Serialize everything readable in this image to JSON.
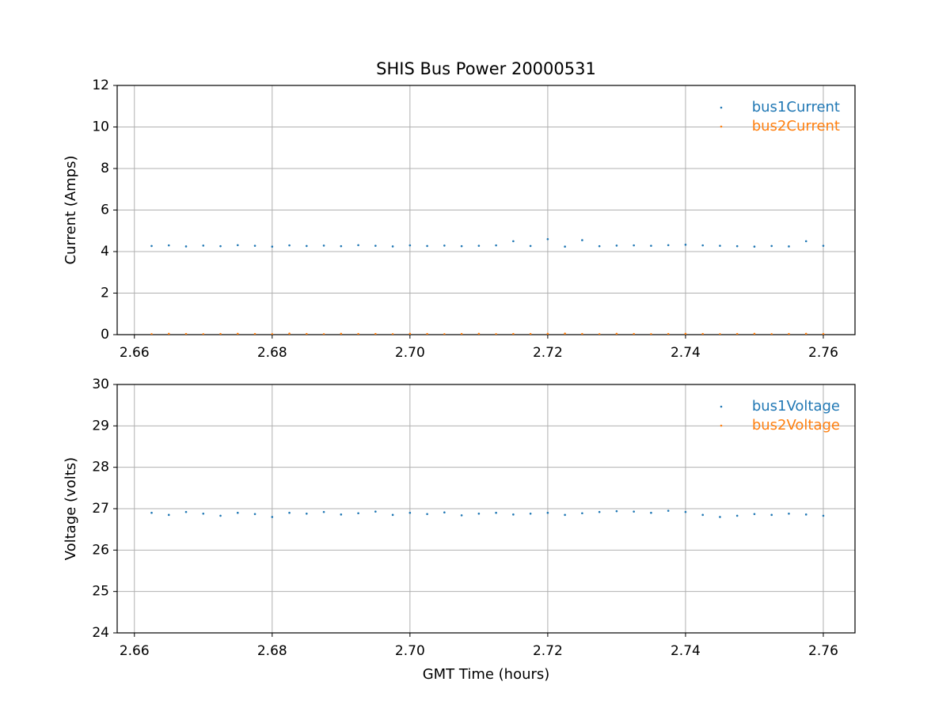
{
  "chart_data": [
    {
      "type": "scatter",
      "title": "SHIS Bus Power 20000531",
      "ylabel": "Current (Amps)",
      "x": [
        2.6625,
        2.665,
        2.6675,
        2.67,
        2.6725,
        2.675,
        2.6775,
        2.68,
        2.6825,
        2.685,
        2.6875,
        2.69,
        2.6925,
        2.695,
        2.6975,
        2.7,
        2.7025,
        2.705,
        2.7075,
        2.71,
        2.7125,
        2.715,
        2.7175,
        2.72,
        2.7225,
        2.725,
        2.7275,
        2.73,
        2.7325,
        2.735,
        2.7375,
        2.74,
        2.7425,
        2.745,
        2.7475,
        2.75,
        2.7525,
        2.755,
        2.7575,
        2.76
      ],
      "series": [
        {
          "name": "bus1Current",
          "color": "#1f77b4",
          "values": [
            4.27,
            4.3,
            4.25,
            4.29,
            4.26,
            4.31,
            4.28,
            4.24,
            4.3,
            4.27,
            4.29,
            4.26,
            4.31,
            4.28,
            4.25,
            4.3,
            4.27,
            4.29,
            4.26,
            4.28,
            4.3,
            4.5,
            4.27,
            4.6,
            4.24,
            4.55,
            4.26,
            4.29,
            4.3,
            4.28,
            4.31,
            4.33,
            4.3,
            4.28,
            4.26,
            4.24,
            4.27,
            4.25,
            4.5,
            4.28
          ]
        },
        {
          "name": "bus2Current",
          "color": "#ff7f0e",
          "values": [
            0.02,
            0.04,
            0.03,
            0.02,
            0.03,
            0.04,
            0.03,
            0.02,
            0.05,
            0.03,
            0.02,
            0.04,
            0.03,
            0.03,
            0.02,
            0.04,
            0.03,
            0.02,
            0.03,
            0.04,
            0.02,
            0.03,
            0.03,
            0.04,
            0.05,
            0.03,
            0.02,
            0.04,
            0.03,
            0.02,
            0.03,
            0.04,
            0.03,
            0.02,
            0.03,
            0.04,
            0.02,
            0.03,
            0.04,
            0.03
          ]
        }
      ],
      "xlim": [
        2.6575,
        2.7646
      ],
      "xticks": [
        2.66,
        2.68,
        {
          "value": 2.7,
          "label": "2.70"
        },
        2.72,
        2.74,
        2.76
      ],
      "ylim": [
        0,
        12
      ],
      "yticks": [
        0,
        2,
        4,
        6,
        8,
        10,
        12
      ],
      "grid": true,
      "legend": "upper right"
    },
    {
      "type": "scatter",
      "ylabel": "Voltage (volts)",
      "xlabel": "GMT Time (hours)",
      "x": [
        2.6625,
        2.665,
        2.6675,
        2.67,
        2.6725,
        2.675,
        2.6775,
        2.68,
        2.6825,
        2.685,
        2.6875,
        2.69,
        2.6925,
        2.695,
        2.6975,
        2.7,
        2.7025,
        2.705,
        2.7075,
        2.71,
        2.7125,
        2.715,
        2.7175,
        2.72,
        2.7225,
        2.725,
        2.7275,
        2.73,
        2.7325,
        2.735,
        2.7375,
        2.74,
        2.7425,
        2.745,
        2.7475,
        2.75,
        2.7525,
        2.755,
        2.7575,
        2.76
      ],
      "series": [
        {
          "name": "bus1Voltage",
          "color": "#1f77b4",
          "values": [
            26.9,
            26.85,
            26.92,
            26.88,
            26.83,
            26.9,
            26.87,
            26.8,
            26.9,
            26.88,
            26.92,
            26.86,
            26.89,
            26.93,
            26.85,
            26.9,
            26.87,
            26.91,
            26.84,
            26.88,
            26.9,
            26.86,
            26.88,
            26.9,
            26.85,
            26.89,
            26.92,
            26.94,
            26.93,
            26.9,
            26.95,
            26.92,
            26.85,
            26.8,
            26.83,
            26.87,
            26.85,
            26.88,
            26.86,
            26.83
          ]
        },
        {
          "name": "bus2Voltage",
          "color": "#ff7f0e",
          "values": [
            null,
            null,
            null,
            null,
            null,
            null,
            null,
            null,
            null,
            null,
            null,
            null,
            null,
            null,
            null,
            null,
            null,
            null,
            null,
            null,
            null,
            null,
            null,
            null,
            null,
            null,
            null,
            null,
            null,
            null,
            null,
            null,
            null,
            null,
            null,
            null,
            null,
            null,
            null,
            null
          ]
        }
      ],
      "xlim": [
        2.6575,
        2.7646
      ],
      "xticks": [
        2.66,
        2.68,
        {
          "value": 2.7,
          "label": "2.70"
        },
        2.72,
        2.74,
        2.76
      ],
      "ylim": [
        24,
        30
      ],
      "yticks": [
        24,
        25,
        26,
        27,
        28,
        29,
        30
      ],
      "grid": true,
      "legend": "upper right"
    }
  ]
}
